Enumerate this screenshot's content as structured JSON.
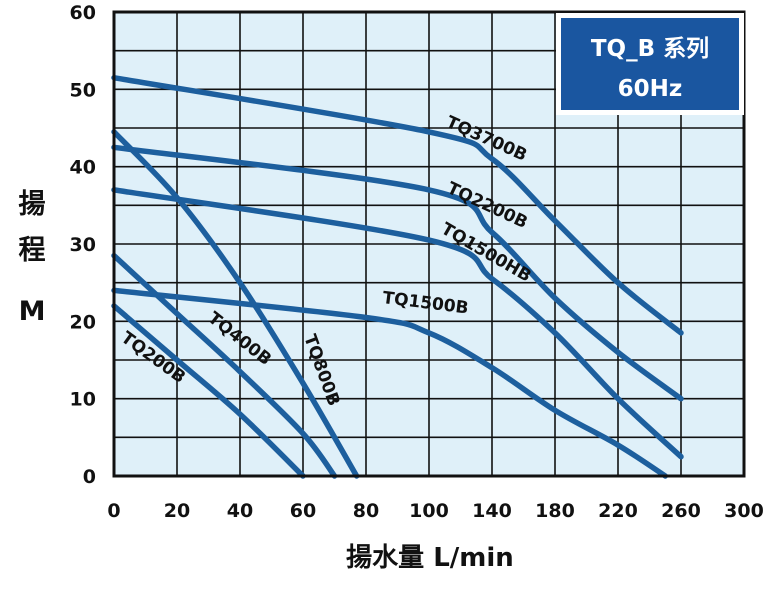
{
  "chart_data": {
    "type": "line",
    "title": "TQ_B 系列",
    "subtitle": "60Hz",
    "ylabel_chars": [
      "揚",
      "程",
      "M"
    ],
    "xlabel": "揚水量 L/min",
    "xlim": [
      0,
      300
    ],
    "ylim": [
      0,
      60
    ],
    "xticks": [
      0,
      20,
      40,
      60,
      80,
      100,
      140,
      180,
      220,
      260,
      300
    ],
    "yticks": [
      0,
      10,
      20,
      30,
      40,
      50,
      60
    ],
    "grid": true,
    "colors": {
      "background": "#dff0f9",
      "curve": "#1d5f9e",
      "badge": "#1a56a0",
      "grid": "#111111"
    },
    "series": [
      {
        "name": "TQ3700B",
        "x": [
          0,
          100,
          140,
          180,
          220,
          260
        ],
        "y": [
          51.5,
          44.5,
          41,
          33,
          25,
          18.5
        ]
      },
      {
        "name": "TQ2200B",
        "x": [
          0,
          100,
          140,
          180,
          220,
          260
        ],
        "y": [
          42.5,
          37,
          31.5,
          23,
          16,
          10
        ]
      },
      {
        "name": "TQ1500HB",
        "x": [
          0,
          100,
          140,
          180,
          220,
          260
        ],
        "y": [
          37,
          30.5,
          25.5,
          18.5,
          10,
          2.5
        ]
      },
      {
        "name": "TQ1500B",
        "x": [
          0,
          80,
          100,
          140,
          180,
          220,
          250
        ],
        "y": [
          24,
          20.5,
          18.5,
          14,
          8.5,
          4,
          0
        ]
      },
      {
        "name": "TQ800B",
        "x": [
          0,
          20,
          40,
          60,
          77
        ],
        "y": [
          44.5,
          36,
          25,
          12,
          0
        ]
      },
      {
        "name": "TQ400B",
        "x": [
          0,
          20,
          40,
          60,
          70
        ],
        "y": [
          28.5,
          21,
          13.5,
          5.5,
          0
        ]
      },
      {
        "name": "TQ200B",
        "x": [
          0,
          20,
          40,
          60
        ],
        "y": [
          22,
          15,
          8,
          0
        ]
      }
    ]
  }
}
